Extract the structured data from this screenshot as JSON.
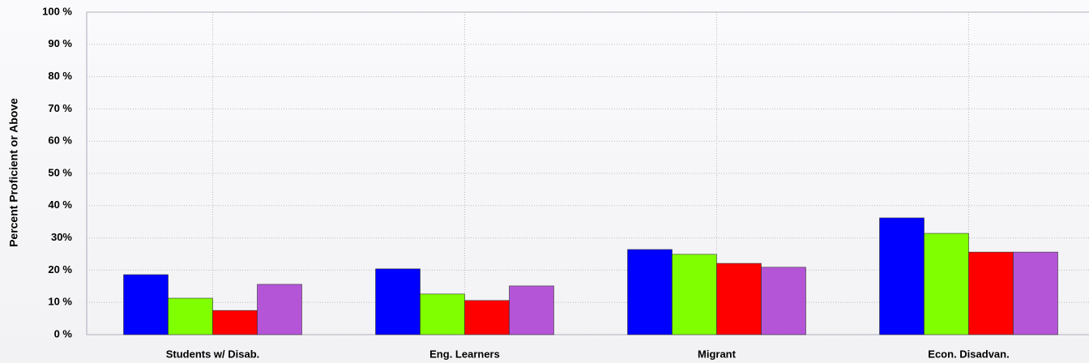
{
  "chart_data": {
    "type": "bar",
    "y_label": "Percent Proficient or Above",
    "categories": [
      "Students w/ Disab.",
      "Eng. Learners",
      "Migrant",
      "Econ. Disadvan."
    ],
    "series": [
      {
        "color": "#0000ff",
        "values": [
          18.6,
          20.4,
          26.4,
          36.2
        ]
      },
      {
        "color": "#80ff00",
        "values": [
          11.3,
          12.6,
          24.9,
          31.4
        ]
      },
      {
        "color": "#ff0000",
        "values": [
          7.5,
          10.6,
          22.1,
          25.6
        ]
      },
      {
        "color": "#b455d8",
        "values": [
          15.6,
          15.1,
          20.9,
          25.6
        ]
      }
    ],
    "ylim": [
      0,
      100
    ],
    "yticks": [
      {
        "value": 0,
        "label": "0 %"
      },
      {
        "value": 10,
        "label": "10 %"
      },
      {
        "value": 20,
        "label": "20 %"
      },
      {
        "value": 30,
        "label": "30%"
      },
      {
        "value": 40,
        "label": "40 %"
      },
      {
        "value": 50,
        "label": "50 %"
      },
      {
        "value": 60,
        "label": "60 %"
      },
      {
        "value": 70,
        "label": "70 %"
      },
      {
        "value": 80,
        "label": "80 %"
      },
      {
        "value": 90,
        "label": "90 %"
      },
      {
        "value": 100,
        "label": "100 %"
      }
    ],
    "grid": true
  }
}
